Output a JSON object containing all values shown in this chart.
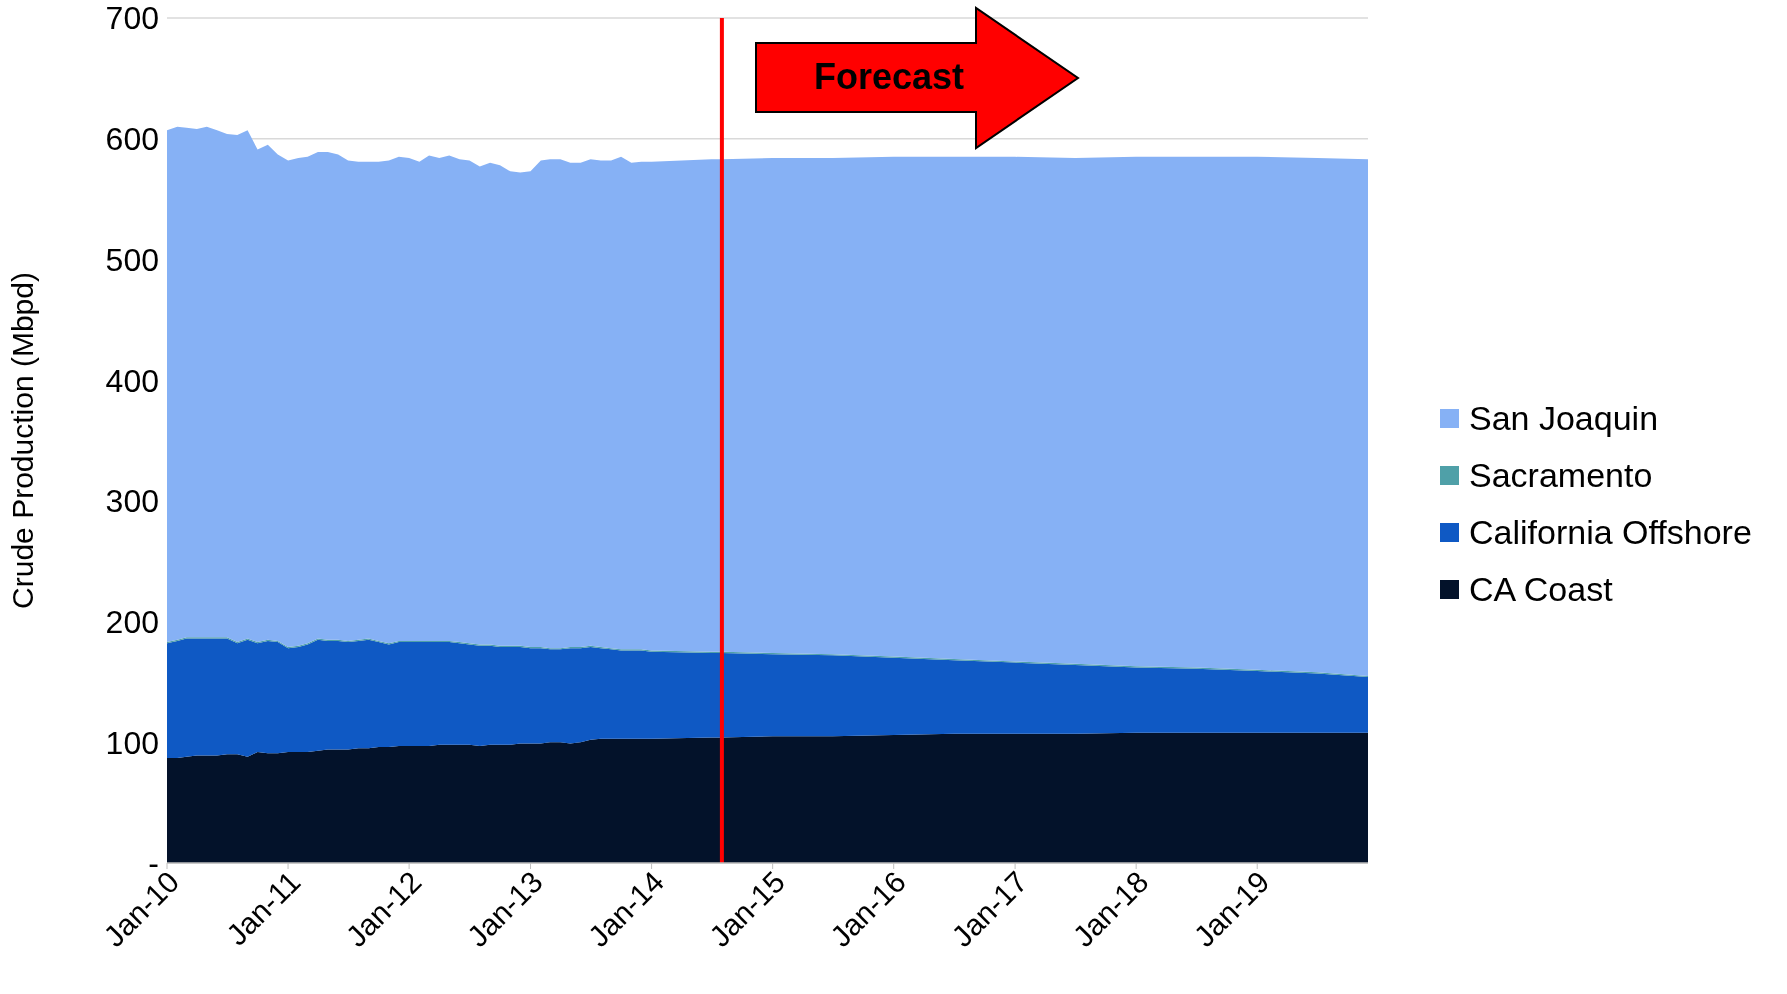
{
  "chart_data": {
    "type": "area",
    "stacked": true,
    "ylabel": "Crude Production (Mbpd)",
    "annotations": [
      "Forecast"
    ],
    "x": [
      "2010-01",
      "2010-02",
      "2010-03",
      "2010-04",
      "2010-05",
      "2010-06",
      "2010-07",
      "2010-08",
      "2010-09",
      "2010-10",
      "2010-11",
      "2010-12",
      "2011-01",
      "2011-02",
      "2011-03",
      "2011-04",
      "2011-05",
      "2011-06",
      "2011-07",
      "2011-08",
      "2011-09",
      "2011-10",
      "2011-11",
      "2011-12",
      "2012-01",
      "2012-02",
      "2012-03",
      "2012-04",
      "2012-05",
      "2012-06",
      "2012-07",
      "2012-08",
      "2012-09",
      "2012-10",
      "2012-11",
      "2012-12",
      "2013-01",
      "2013-02",
      "2013-03",
      "2013-04",
      "2013-05",
      "2013-06",
      "2013-07",
      "2013-08",
      "2013-09",
      "2013-10",
      "2013-11",
      "2013-12",
      "2014-01",
      "2014-07",
      "2014-08",
      "2015-01",
      "2015-07",
      "2016-01",
      "2016-07",
      "2017-01",
      "2017-07",
      "2018-01",
      "2018-07",
      "2019-01",
      "2019-07",
      "2019-12"
    ],
    "series": [
      {
        "name": "CA Coast",
        "color": "#03122a",
        "values": [
          87,
          87,
          88,
          89,
          89,
          89,
          90,
          90,
          88,
          92,
          91,
          91,
          92,
          92,
          92,
          93,
          94,
          94,
          94,
          95,
          95,
          96,
          96,
          97,
          97,
          97,
          97,
          98,
          98,
          98,
          98,
          97,
          98,
          98,
          98,
          99,
          99,
          99,
          100,
          100,
          99,
          100,
          102,
          103,
          103,
          103,
          103,
          103,
          103,
          104,
          104,
          105,
          105,
          106,
          107,
          107,
          107,
          108,
          108,
          108,
          108,
          108
        ]
      },
      {
        "name": "California Offshore",
        "color": "#0f59c4",
        "values": [
          95,
          97,
          98,
          97,
          97,
          97,
          96,
          92,
          97,
          90,
          93,
          92,
          86,
          87,
          89,
          92,
          90,
          90,
          89,
          89,
          90,
          87,
          85,
          86,
          86,
          86,
          86,
          85,
          85,
          84,
          83,
          83,
          82,
          81,
          81,
          80,
          79,
          79,
          77,
          77,
          79,
          78,
          77,
          75,
          74,
          73,
          73,
          73,
          72,
          70,
          70,
          68,
          67,
          64,
          61,
          59,
          57,
          54,
          53,
          51,
          49,
          46
        ]
      },
      {
        "name": "Sacramento",
        "color": "#4fa0a8",
        "values": [
          1,
          1,
          1,
          1,
          1,
          1,
          1,
          1,
          1,
          1,
          1,
          1,
          1,
          1,
          1,
          1,
          1,
          1,
          1,
          1,
          1,
          1,
          1,
          1,
          1,
          1,
          1,
          1,
          1,
          1,
          1,
          1,
          1,
          1,
          1,
          1,
          1,
          1,
          1,
          1,
          1,
          1,
          1,
          1,
          1,
          1,
          1,
          1,
          1,
          1,
          1,
          1,
          1,
          1,
          1,
          1,
          1,
          1,
          1,
          1,
          1,
          1
        ]
      },
      {
        "name": "San Joaquin",
        "color": "#86b1f5",
        "values": [
          424,
          425,
          422,
          421,
          423,
          420,
          417,
          420,
          421,
          408,
          410,
          403,
          403,
          404,
          403,
          403,
          404,
          402,
          398,
          396,
          395,
          397,
          400,
          401,
          400,
          397,
          402,
          400,
          402,
          400,
          400,
          396,
          399,
          398,
          393,
          392,
          394,
          403,
          405,
          405,
          401,
          401,
          403,
          403,
          404,
          408,
          403,
          404,
          405,
          408,
          408,
          410,
          411,
          414,
          416,
          418,
          419,
          422,
          423,
          425,
          426,
          428
        ]
      }
    ],
    "xlim": [
      "2010-01",
      "2019-12"
    ],
    "xticks": [
      {
        "value": "2010-01",
        "label": "Jan-10"
      },
      {
        "value": "2011-01",
        "label": "Jan-11"
      },
      {
        "value": "2012-01",
        "label": "Jan-12"
      },
      {
        "value": "2013-01",
        "label": "Jan-13"
      },
      {
        "value": "2014-01",
        "label": "Jan-14"
      },
      {
        "value": "2015-01",
        "label": "Jan-15"
      },
      {
        "value": "2016-01",
        "label": "Jan-16"
      },
      {
        "value": "2017-01",
        "label": "Jan-17"
      },
      {
        "value": "2018-01",
        "label": "Jan-18"
      },
      {
        "value": "2019-01",
        "label": "Jan-19"
      }
    ],
    "ylim": [
      0,
      700
    ],
    "yticks": [
      {
        "value": 0,
        "label": "-"
      },
      100,
      200,
      300,
      400,
      500,
      600,
      700
    ],
    "grid": "y",
    "legend": "right",
    "ref_lines": [
      {
        "axis": "x",
        "value": "2014-08",
        "color": "#ff0000"
      }
    ]
  }
}
